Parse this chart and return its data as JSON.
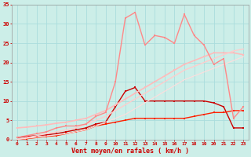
{
  "x": [
    0,
    1,
    2,
    3,
    4,
    5,
    6,
    7,
    8,
    9,
    10,
    11,
    12,
    13,
    14,
    15,
    16,
    17,
    18,
    19,
    20,
    21,
    22,
    23
  ],
  "series": [
    {
      "name": "dark_red_peaked",
      "color": "#cc0000",
      "linewidth": 1.0,
      "marker": "s",
      "markersize": 2.0,
      "y": [
        0.5,
        0.8,
        1.0,
        1.2,
        1.5,
        2.0,
        2.5,
        3.0,
        4.0,
        4.5,
        8.5,
        12.5,
        13.5,
        10.0,
        10.0,
        10.0,
        10.0,
        10.0,
        10.0,
        10.0,
        9.5,
        8.5,
        3.0,
        3.0
      ]
    },
    {
      "name": "bright_red_low",
      "color": "#ff2200",
      "linewidth": 1.0,
      "marker": "s",
      "markersize": 2.0,
      "y": [
        0.0,
        0.2,
        0.5,
        0.8,
        1.0,
        1.5,
        2.0,
        2.5,
        3.5,
        4.0,
        4.5,
        5.0,
        5.5,
        5.5,
        5.5,
        5.5,
        5.5,
        5.5,
        6.0,
        6.5,
        7.0,
        7.0,
        7.5,
        7.5
      ]
    },
    {
      "name": "light_pink_nearly_straight_upper",
      "color": "#ffbbbb",
      "linewidth": 1.2,
      "marker": "s",
      "markersize": 2.0,
      "y": [
        3.0,
        3.2,
        3.5,
        3.8,
        4.2,
        4.5,
        5.0,
        5.5,
        6.5,
        7.5,
        9.0,
        10.5,
        12.0,
        13.5,
        15.0,
        16.5,
        18.0,
        19.5,
        20.5,
        21.5,
        22.5,
        22.5,
        22.5,
        22.0
      ]
    },
    {
      "name": "light_pink_nearly_straight_lower",
      "color": "#ffcccc",
      "linewidth": 1.0,
      "marker": null,
      "markersize": 0,
      "y": [
        0.0,
        0.5,
        1.0,
        1.5,
        2.0,
        2.5,
        3.0,
        4.0,
        5.0,
        6.0,
        7.5,
        9.0,
        10.5,
        12.0,
        13.5,
        15.0,
        16.5,
        18.0,
        19.0,
        20.0,
        21.0,
        22.0,
        23.0,
        23.5
      ]
    },
    {
      "name": "light_pink_nearly_straight_bottom",
      "color": "#ffdddd",
      "linewidth": 0.8,
      "marker": null,
      "markersize": 0,
      "y": [
        0.0,
        0.3,
        0.6,
        0.9,
        1.2,
        1.5,
        2.0,
        2.5,
        3.5,
        4.5,
        5.5,
        6.5,
        8.0,
        9.5,
        11.0,
        12.5,
        14.0,
        15.5,
        16.5,
        17.5,
        18.5,
        19.5,
        20.5,
        21.5
      ]
    },
    {
      "name": "pink_spiky_top",
      "color": "#ff8888",
      "linewidth": 1.0,
      "marker": "s",
      "markersize": 2.0,
      "y": [
        0.5,
        1.0,
        1.5,
        2.0,
        3.0,
        3.5,
        3.5,
        4.0,
        6.0,
        7.0,
        15.0,
        31.5,
        33.0,
        24.5,
        27.0,
        26.5,
        25.0,
        32.5,
        27.0,
        24.5,
        19.5,
        21.0,
        5.5,
        8.5
      ]
    }
  ],
  "xlim": [
    -0.5,
    23.5
  ],
  "ylim": [
    0,
    35
  ],
  "yticks": [
    0,
    5,
    10,
    15,
    20,
    25,
    30,
    35
  ],
  "xticks": [
    0,
    1,
    2,
    3,
    4,
    5,
    6,
    7,
    8,
    9,
    10,
    11,
    12,
    13,
    14,
    15,
    16,
    17,
    18,
    19,
    20,
    21,
    22,
    23
  ],
  "xlabel": "Vent moyen/en rafales ( km/h )",
  "bg_color": "#cceee8",
  "grid_color": "#aadddd",
  "tick_color": "#cc0000",
  "xlabel_color": "#cc0000"
}
